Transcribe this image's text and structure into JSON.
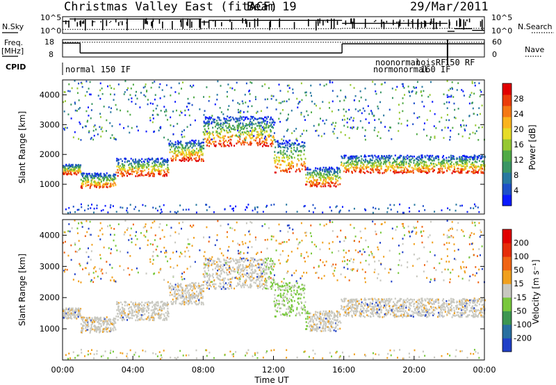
{
  "title": {
    "station": "Christmas Valley East (fitACF)",
    "beam": "Beam 19",
    "date": "29/Mar/2011"
  },
  "chart_data": [
    {
      "type": "line",
      "panel": "noise",
      "left_label": "N.Sky",
      "right_label": "N.Search",
      "y_ticks_left": [
        "10^5",
        "10^0"
      ],
      "y_ticks_right": [
        "10^5",
        "10^0"
      ],
      "sky_segments": [
        {
          "x": [
            0.0,
            0.4
          ],
          "y": 3.6
        },
        {
          "x": [
            0.4,
            7.9
          ],
          "y": 4.3
        },
        {
          "x": [
            7.9,
            8.3
          ],
          "y": 3.4
        },
        {
          "x": [
            8.3,
            15.9
          ],
          "y": 3.9
        },
        {
          "x": [
            15.9,
            21.9
          ],
          "y": 3.0
        },
        {
          "x": [
            21.9,
            22.3
          ],
          "y": 0.6
        },
        {
          "x": [
            22.3,
            23.3
          ],
          "y": 1.4
        },
        {
          "x": [
            23.3,
            24.0
          ],
          "y": 0.9
        }
      ],
      "search_segments": [
        {
          "x": [
            0.0,
            7.9
          ],
          "y": 1.2
        },
        {
          "x": [
            7.9,
            15.9
          ],
          "y": 1.4
        },
        {
          "x": [
            15.9,
            24.0
          ],
          "y": 1.5
        }
      ]
    },
    {
      "type": "line",
      "panel": "frequency",
      "left_label_line1": "Freq.",
      "left_label_line2": "[MHz]",
      "right_label": "Nave",
      "y_ticks_left": [
        "18",
        "8"
      ],
      "y_ticks_right": [
        "60",
        "0"
      ],
      "freq_segments": [
        {
          "x": [
            0.0,
            1.0
          ],
          "y": 16.0
        },
        {
          "x": [
            1.0,
            15.9
          ],
          "y": 10.3
        },
        {
          "x": [
            15.9,
            24.0
          ],
          "y": 15.6
        }
      ],
      "nave_level": 16.5
    },
    {
      "type": "table",
      "panel": "cpid",
      "label": "CPID",
      "entries": [
        {
          "x": 0.1,
          "text": "normal 150 IF",
          "row": 0
        },
        {
          "x": 17.6,
          "text": "noonormal",
          "row": -1
        },
        {
          "x": 19.4,
          "text": "noisRF",
          "row": -1
        },
        {
          "x": 20.6,
          "text": "150 RF",
          "row": -1
        },
        {
          "x": 17.4,
          "text": "normonormal",
          "row": 0
        },
        {
          "x": 20.3,
          "text": "160 IF",
          "row": 0
        }
      ]
    },
    {
      "type": "heatmap",
      "panel": "power",
      "ylabel": "Slant Range [km]",
      "ylim": [
        0,
        4500
      ],
      "xlim": [
        0,
        24
      ],
      "y_ticks": [
        1000,
        2000,
        3000,
        4000
      ],
      "colorbar": {
        "label": "Power [dB]",
        "ticks": [
          "28",
          "24",
          "20",
          "16",
          "12",
          "8",
          "4"
        ],
        "colors": [
          "#0a1aff",
          "#1e50c8",
          "#2878a0",
          "#3a9664",
          "#50aa46",
          "#96c832",
          "#e6dc28",
          "#fab41e",
          "#f57814",
          "#eb3c0a",
          "#e10000"
        ]
      },
      "bands": [
        {
          "x": [
            0.0,
            1.0
          ],
          "y": [
            1350,
            1700
          ]
        },
        {
          "x": [
            1.0,
            3.0
          ],
          "y": [
            900,
            1400
          ]
        },
        {
          "x": [
            3.0,
            6.0
          ],
          "y": [
            1300,
            1900
          ]
        },
        {
          "x": [
            6.0,
            8.0
          ],
          "y": [
            1800,
            2500
          ]
        },
        {
          "x": [
            8.0,
            12.0
          ],
          "y": [
            2300,
            3300
          ]
        },
        {
          "x": [
            12.0,
            13.8
          ],
          "y": [
            1400,
            2500
          ]
        },
        {
          "x": [
            13.8,
            15.8
          ],
          "y": [
            950,
            1600
          ]
        },
        {
          "x": [
            15.8,
            24.0
          ],
          "y": [
            1400,
            2000
          ]
        }
      ]
    },
    {
      "type": "heatmap",
      "panel": "velocity",
      "ylabel": "Slant Range [km]",
      "xlabel": "Time UT",
      "ylim": [
        0,
        4500
      ],
      "xlim": [
        0,
        24
      ],
      "y_ticks": [
        1000,
        2000,
        3000,
        4000
      ],
      "x_ticks": [
        "00:00",
        "04:00",
        "08:00",
        "12:00",
        "16:00",
        "20:00",
        "00:00"
      ],
      "colorbar": {
        "label": "Velocity [m s⁻¹]",
        "ticks": [
          "200",
          "100",
          "50",
          "15",
          "-15",
          "-50",
          "-100",
          "-200"
        ],
        "colors": [
          "#2040c8",
          "#286fa0",
          "#3c9650",
          "#78c83c",
          "#c8c8c0",
          "#f0a01e",
          "#f06414",
          "#e62d0a",
          "#e10000"
        ]
      }
    }
  ]
}
